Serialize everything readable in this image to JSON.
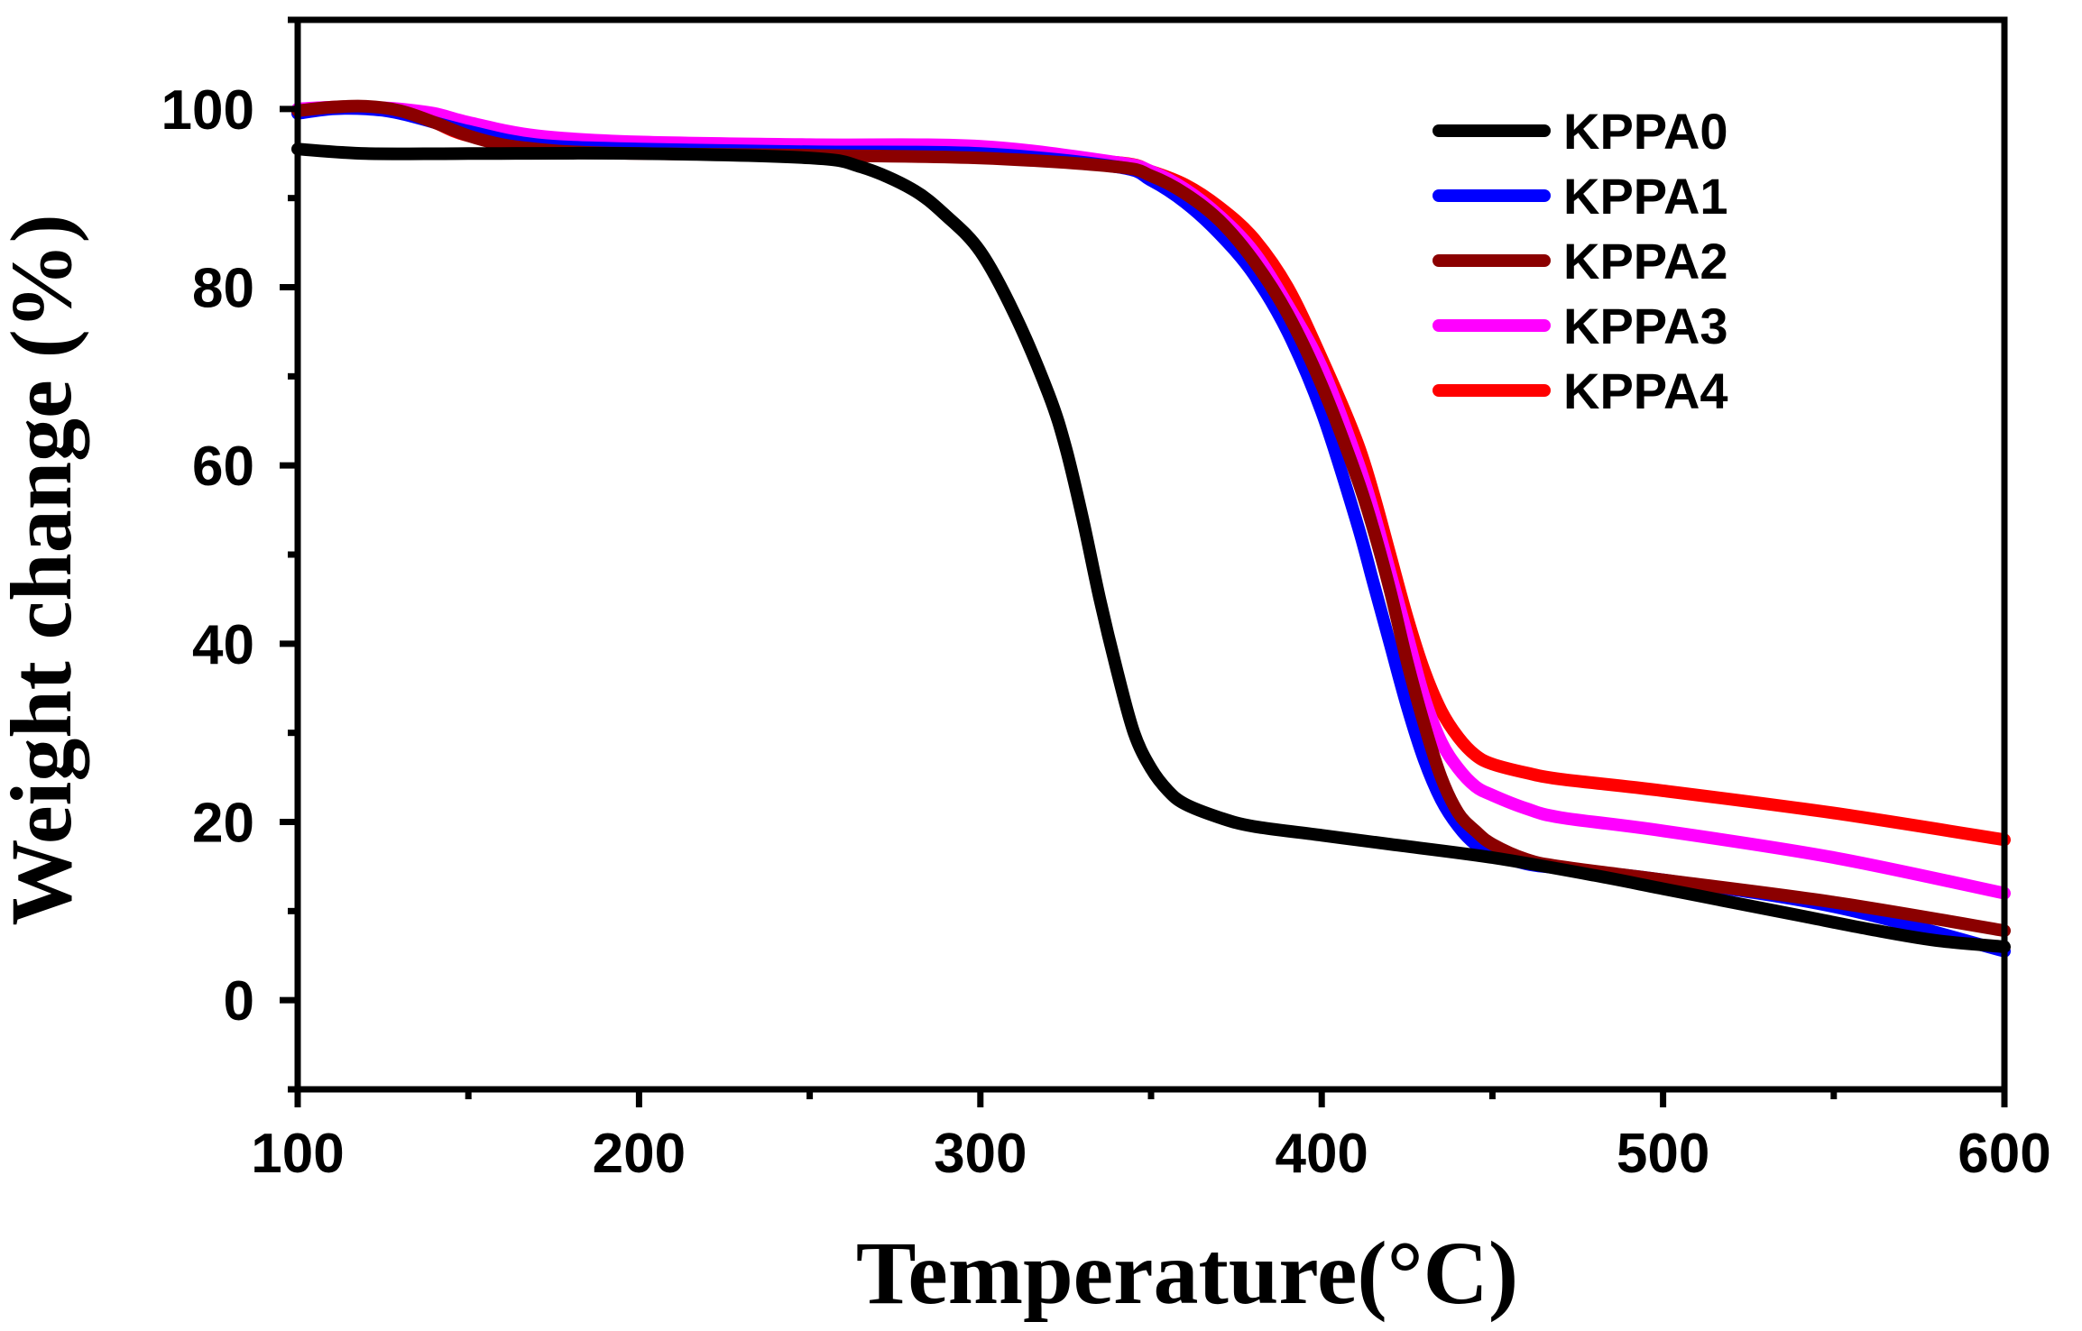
{
  "chart_data": {
    "type": "line",
    "title": "",
    "xlabel": "Temperature(°C)",
    "ylabel": "Weight change (%)",
    "xlim": [
      100,
      600
    ],
    "ylim": [
      -10,
      110
    ],
    "xticks": [
      100,
      200,
      300,
      400,
      500,
      600
    ],
    "xtick_labels": [
      "100",
      "200",
      "300",
      "400",
      "500",
      "600"
    ],
    "yticks": [
      0,
      20,
      40,
      60,
      80,
      100
    ],
    "ytick_labels": [
      "0",
      "20",
      "40",
      "60",
      "80",
      "100"
    ],
    "grid": false,
    "legend_position": "top-right",
    "series": [
      {
        "name": "KPPA0",
        "color": "#000000",
        "x": [
          100,
          120,
          150,
          200,
          250,
          265,
          280,
          290,
          300,
          310,
          320,
          325,
          330,
          335,
          340,
          345,
          350,
          355,
          360,
          370,
          380,
          400,
          420,
          450,
          480,
          500,
          520,
          540,
          560,
          580,
          600
        ],
        "y": [
          95.5,
          95,
          95,
          95,
          94.5,
          93.5,
          91,
          88,
          84,
          77,
          68,
          62,
          54,
          45,
          37,
          30,
          26,
          23.5,
          22,
          20.5,
          19.5,
          18.5,
          17.5,
          16,
          14,
          12.5,
          11,
          9.5,
          8,
          6.7,
          6
        ]
      },
      {
        "name": "KPPA1",
        "color": "#0000ff",
        "x": [
          100,
          110,
          120,
          130,
          150,
          170,
          200,
          250,
          300,
          340,
          350,
          360,
          370,
          380,
          390,
          400,
          410,
          415,
          420,
          425,
          430,
          435,
          440,
          445,
          450,
          460,
          470,
          500,
          550,
          600
        ],
        "y": [
          99.5,
          100,
          100,
          99.5,
          97.5,
          96,
          95.5,
          95.2,
          95,
          93.5,
          92,
          89.5,
          86,
          81.5,
          75,
          66,
          54,
          47,
          40,
          33,
          27,
          22.5,
          19.5,
          17.5,
          16.5,
          15.3,
          14.8,
          13.5,
          10.5,
          5.5
        ]
      },
      {
        "name": "KPPA2",
        "color": "#8b0000",
        "x": [
          100,
          110,
          120,
          130,
          140,
          150,
          160,
          170,
          180,
          200,
          250,
          300,
          340,
          350,
          360,
          370,
          380,
          390,
          400,
          410,
          415,
          420,
          425,
          430,
          435,
          440,
          445,
          450,
          460,
          470,
          500,
          550,
          600
        ],
        "y": [
          99.8,
          100.2,
          100.3,
          99.8,
          98.5,
          97,
          96,
          95.5,
          95.2,
          95,
          94.8,
          94.5,
          93.5,
          92.5,
          90.5,
          87.5,
          83,
          77,
          69,
          59,
          53,
          46,
          38,
          31,
          25,
          21,
          19,
          17.5,
          15.8,
          15,
          13.5,
          11,
          7.8
        ]
      },
      {
        "name": "KPPA3",
        "color": "#ff00ff",
        "x": [
          100,
          110,
          120,
          130,
          140,
          150,
          170,
          200,
          250,
          300,
          340,
          350,
          360,
          370,
          380,
          390,
          400,
          410,
          415,
          420,
          425,
          430,
          435,
          440,
          445,
          450,
          460,
          470,
          500,
          550,
          600
        ],
        "y": [
          100,
          100.2,
          100.2,
          100,
          99.5,
          98.5,
          97,
          96.3,
          96,
          95.8,
          94,
          93,
          91,
          88,
          84,
          78,
          71,
          61,
          55,
          48,
          41,
          34,
          29,
          26,
          24,
          23,
          21.5,
          20.5,
          19,
          16,
          12
        ]
      },
      {
        "name": "KPPA4",
        "color": "#ff0000",
        "x": [
          100,
          110,
          120,
          130,
          140,
          150,
          170,
          200,
          250,
          300,
          340,
          350,
          360,
          370,
          380,
          390,
          400,
          410,
          415,
          420,
          425,
          430,
          435,
          440,
          445,
          450,
          460,
          470,
          500,
          550,
          600
        ],
        "y": [
          99.8,
          100.2,
          100.2,
          99.8,
          98.5,
          97,
          95.8,
          95.2,
          95,
          94.8,
          94,
          93,
          91.5,
          89,
          85.5,
          80,
          72,
          63,
          57,
          50,
          43,
          37,
          32.5,
          29.5,
          27.5,
          26.5,
          25.5,
          24.8,
          23.5,
          21,
          18
        ]
      }
    ]
  }
}
